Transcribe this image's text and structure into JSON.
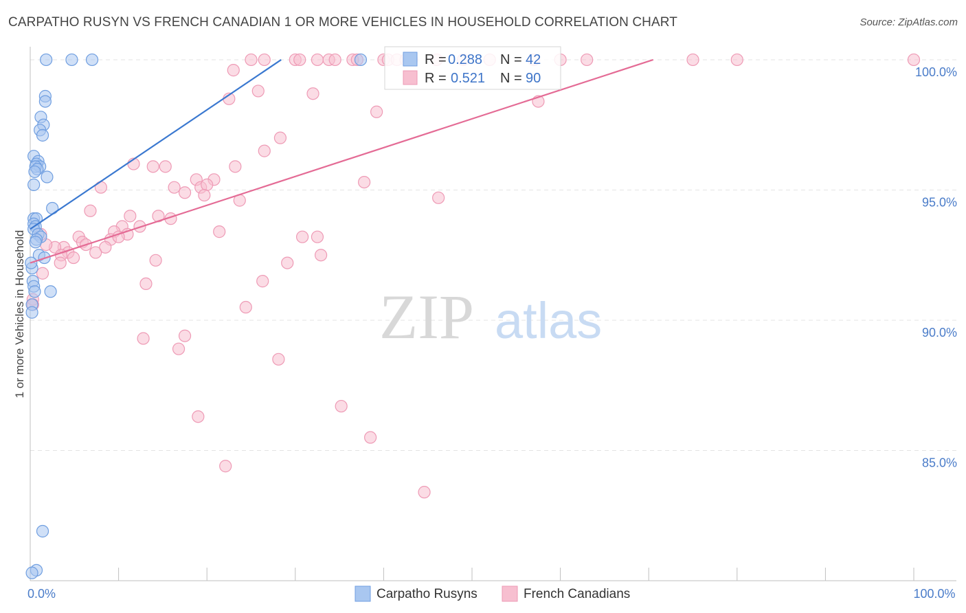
{
  "title": "CARPATHO RUSYN VS FRENCH CANADIAN 1 OR MORE VEHICLES IN HOUSEHOLD CORRELATION CHART",
  "source": "Source: ZipAtlas.com",
  "watermark": {
    "zip": "ZIP",
    "atlas": "atlas"
  },
  "colors": {
    "blue_fill": "#a9c7f0",
    "blue_stroke": "#6f9ee0",
    "blue_line": "#3a78d0",
    "pink_fill": "#f7bfd0",
    "pink_stroke": "#ee9ab5",
    "pink_line": "#e46b95",
    "axis_tick": "#4a7cc9",
    "grid": "#e3e3e3"
  },
  "legend": {
    "r_label": "R =",
    "n_label": "N =",
    "series": [
      {
        "name": "Carpatho Rusyns",
        "r": "0.288",
        "n": "42"
      },
      {
        "name": "French Canadians",
        "r": "0.521",
        "n": "90"
      }
    ]
  },
  "chart_data": {
    "type": "scatter",
    "title": "CARPATHO RUSYN VS FRENCH CANADIAN 1 OR MORE VEHICLES IN HOUSEHOLD CORRELATION CHART",
    "xlabel": "",
    "ylabel": "1 or more Vehicles in Household",
    "xlim": [
      0,
      100
    ],
    "ylim": [
      80.0,
      100.5
    ],
    "x_tick_labels": [
      {
        "value": 0,
        "label": "0.0%"
      },
      {
        "value": 100,
        "label": "100.0%"
      }
    ],
    "y_tick_labels": [
      {
        "value": 100,
        "label": "100.0%"
      },
      {
        "value": 95,
        "label": "95.0%"
      },
      {
        "value": 90,
        "label": "90.0%"
      },
      {
        "value": 85,
        "label": "85.0%"
      }
    ],
    "series": [
      {
        "name": "Carpatho Rusyns",
        "color": "blue",
        "trend": {
          "x": [
            0,
            28.4
          ],
          "y": [
            93.5,
            100.0
          ]
        },
        "points": [
          [
            1.8,
            100.0
          ],
          [
            4.7,
            100.0
          ],
          [
            7.0,
            100.0
          ],
          [
            37.4,
            100.0
          ],
          [
            1.7,
            98.6
          ],
          [
            1.7,
            98.4
          ],
          [
            1.2,
            97.8
          ],
          [
            1.5,
            97.5
          ],
          [
            1.1,
            97.3
          ],
          [
            1.4,
            97.1
          ],
          [
            0.4,
            96.3
          ],
          [
            0.9,
            96.1
          ],
          [
            0.7,
            96.0
          ],
          [
            1.1,
            95.9
          ],
          [
            0.6,
            95.9
          ],
          [
            0.8,
            95.8
          ],
          [
            0.5,
            95.7
          ],
          [
            1.9,
            95.5
          ],
          [
            0.4,
            95.2
          ],
          [
            2.5,
            94.3
          ],
          [
            0.4,
            93.9
          ],
          [
            0.7,
            93.9
          ],
          [
            0.4,
            93.7
          ],
          [
            0.6,
            93.6
          ],
          [
            0.4,
            93.5
          ],
          [
            0.9,
            93.3
          ],
          [
            1.2,
            93.2
          ],
          [
            0.7,
            93.1
          ],
          [
            0.6,
            93.0
          ],
          [
            1.0,
            92.5
          ],
          [
            1.6,
            92.4
          ],
          [
            0.2,
            92.0
          ],
          [
            0.3,
            91.5
          ],
          [
            0.4,
            91.3
          ],
          [
            0.5,
            91.1
          ],
          [
            2.3,
            91.1
          ],
          [
            0.2,
            90.6
          ],
          [
            0.2,
            90.3
          ],
          [
            1.4,
            81.9
          ],
          [
            0.7,
            80.4
          ],
          [
            0.2,
            80.3
          ],
          [
            0.1,
            92.2
          ]
        ]
      },
      {
        "name": "French Canadians",
        "color": "pink",
        "trend": {
          "x": [
            0,
            70.5
          ],
          "y": [
            92.2,
            100.0
          ]
        },
        "points": [
          [
            25.0,
            100.0
          ],
          [
            26.5,
            100.0
          ],
          [
            30.0,
            100.0
          ],
          [
            32.5,
            100.0
          ],
          [
            33.8,
            100.0
          ],
          [
            34.5,
            100.0
          ],
          [
            36.5,
            100.0
          ],
          [
            37.0,
            100.0
          ],
          [
            40.0,
            100.0
          ],
          [
            40.5,
            100.0
          ],
          [
            41.5,
            100.0
          ],
          [
            42.5,
            100.0
          ],
          [
            43.2,
            100.0
          ],
          [
            46.0,
            100.0
          ],
          [
            49.0,
            100.0
          ],
          [
            52.0,
            100.0
          ],
          [
            57.0,
            100.0
          ],
          [
            60.0,
            100.0
          ],
          [
            63.0,
            100.0
          ],
          [
            75.0,
            100.0
          ],
          [
            80.0,
            100.0
          ],
          [
            100.0,
            100.0
          ],
          [
            23.0,
            99.6
          ],
          [
            25.8,
            98.8
          ],
          [
            32.0,
            98.7
          ],
          [
            22.5,
            98.5
          ],
          [
            39.2,
            98.0
          ],
          [
            57.5,
            98.4
          ],
          [
            28.3,
            97.0
          ],
          [
            26.5,
            96.5
          ],
          [
            11.7,
            96.0
          ],
          [
            13.9,
            95.9
          ],
          [
            15.3,
            95.9
          ],
          [
            23.2,
            95.9
          ],
          [
            18.8,
            95.4
          ],
          [
            20.8,
            95.4
          ],
          [
            37.8,
            95.3
          ],
          [
            8.0,
            95.1
          ],
          [
            16.3,
            95.1
          ],
          [
            19.3,
            95.1
          ],
          [
            20.0,
            95.2
          ],
          [
            17.5,
            94.9
          ],
          [
            19.7,
            94.8
          ],
          [
            23.7,
            94.6
          ],
          [
            46.2,
            94.7
          ],
          [
            6.8,
            94.2
          ],
          [
            11.3,
            94.0
          ],
          [
            14.5,
            94.0
          ],
          [
            15.9,
            93.9
          ],
          [
            10.4,
            93.6
          ],
          [
            12.4,
            93.6
          ],
          [
            21.4,
            93.4
          ],
          [
            9.5,
            93.4
          ],
          [
            11.0,
            93.3
          ],
          [
            5.5,
            93.2
          ],
          [
            30.8,
            93.2
          ],
          [
            32.5,
            93.2
          ],
          [
            5.9,
            93.0
          ],
          [
            6.3,
            92.9
          ],
          [
            9.1,
            93.1
          ],
          [
            10.0,
            93.2
          ],
          [
            8.5,
            92.8
          ],
          [
            1.2,
            93.3
          ],
          [
            3.8,
            92.8
          ],
          [
            2.8,
            92.8
          ],
          [
            1.8,
            92.9
          ],
          [
            4.3,
            92.6
          ],
          [
            7.4,
            92.6
          ],
          [
            3.5,
            92.5
          ],
          [
            4.9,
            92.4
          ],
          [
            32.9,
            92.5
          ],
          [
            3.4,
            92.2
          ],
          [
            14.2,
            92.3
          ],
          [
            29.1,
            92.2
          ],
          [
            1.4,
            91.8
          ],
          [
            26.3,
            91.5
          ],
          [
            13.1,
            91.4
          ],
          [
            0.3,
            90.8
          ],
          [
            0.3,
            90.6
          ],
          [
            24.4,
            90.5
          ],
          [
            12.8,
            89.3
          ],
          [
            17.5,
            89.4
          ],
          [
            16.8,
            88.9
          ],
          [
            28.1,
            88.5
          ],
          [
            35.2,
            86.7
          ],
          [
            19.0,
            86.3
          ],
          [
            38.5,
            85.5
          ],
          [
            22.1,
            84.4
          ],
          [
            44.6,
            83.4
          ],
          [
            30.5,
            100.0
          ]
        ]
      }
    ]
  }
}
